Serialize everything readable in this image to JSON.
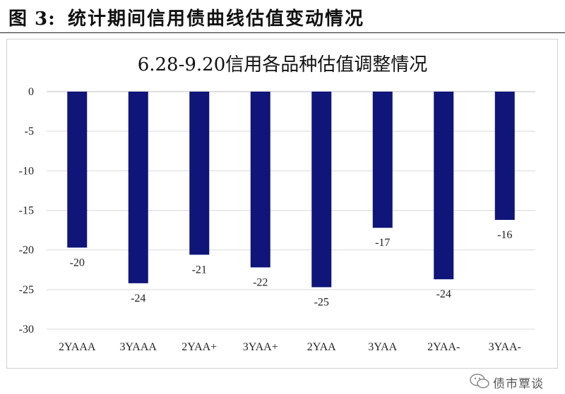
{
  "header": {
    "figure_number": "图 3:",
    "figure_title": "统计期间信用债曲线估值变动情况"
  },
  "watermark": {
    "text": "债市覃谈"
  },
  "colors": {
    "bar": "#0f1579",
    "grid": "#d9d9d9",
    "axis": "#bfbfbf"
  },
  "chart_data": {
    "type": "bar",
    "title": "6.28-9.20信用各品种估值调整情况",
    "categories": [
      "2YAAA",
      "3YAAA",
      "2YAA+",
      "3YAA+",
      "2YAA",
      "3YAA",
      "2YAA-",
      "3YAA-"
    ],
    "values": [
      -19.7,
      -24.2,
      -20.6,
      -22.2,
      -24.7,
      -17.2,
      -23.7,
      -16.2
    ],
    "data_labels": [
      "-20",
      "-24",
      "-21",
      "-22",
      "-25",
      "-17",
      "-24",
      "-16"
    ],
    "ylim": [
      -30,
      0
    ],
    "yticks": [
      0,
      -5,
      -10,
      -15,
      -20,
      -25,
      -30
    ],
    "grid": true,
    "xlabel": "",
    "ylabel": ""
  }
}
